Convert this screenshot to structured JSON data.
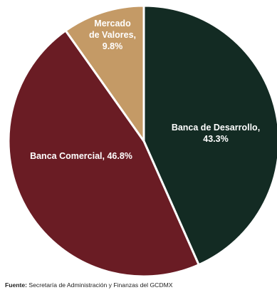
{
  "chart_data": {
    "type": "pie",
    "title": "",
    "slices": [
      {
        "label_lines": [
          "Banca de Desarrollo,",
          "43.3%"
        ],
        "value": 43.3,
        "color": "#132b23"
      },
      {
        "label_lines": [
          "Banca Comercial, 46.8%"
        ],
        "value": 46.8,
        "color": "#6a1c24"
      },
      {
        "label_lines": [
          "Mercado",
          "de Valores,",
          "9.8%"
        ],
        "value": 9.8,
        "color": "#c49a66"
      }
    ],
    "start": "12 o'clock",
    "direction": "clockwise",
    "slice_border_color": "#ffffff",
    "label_color": "#ffffff"
  },
  "source": {
    "label": "Fuente:",
    "text": "Secretaría de  Administración y Finanzas del GCDMX"
  }
}
